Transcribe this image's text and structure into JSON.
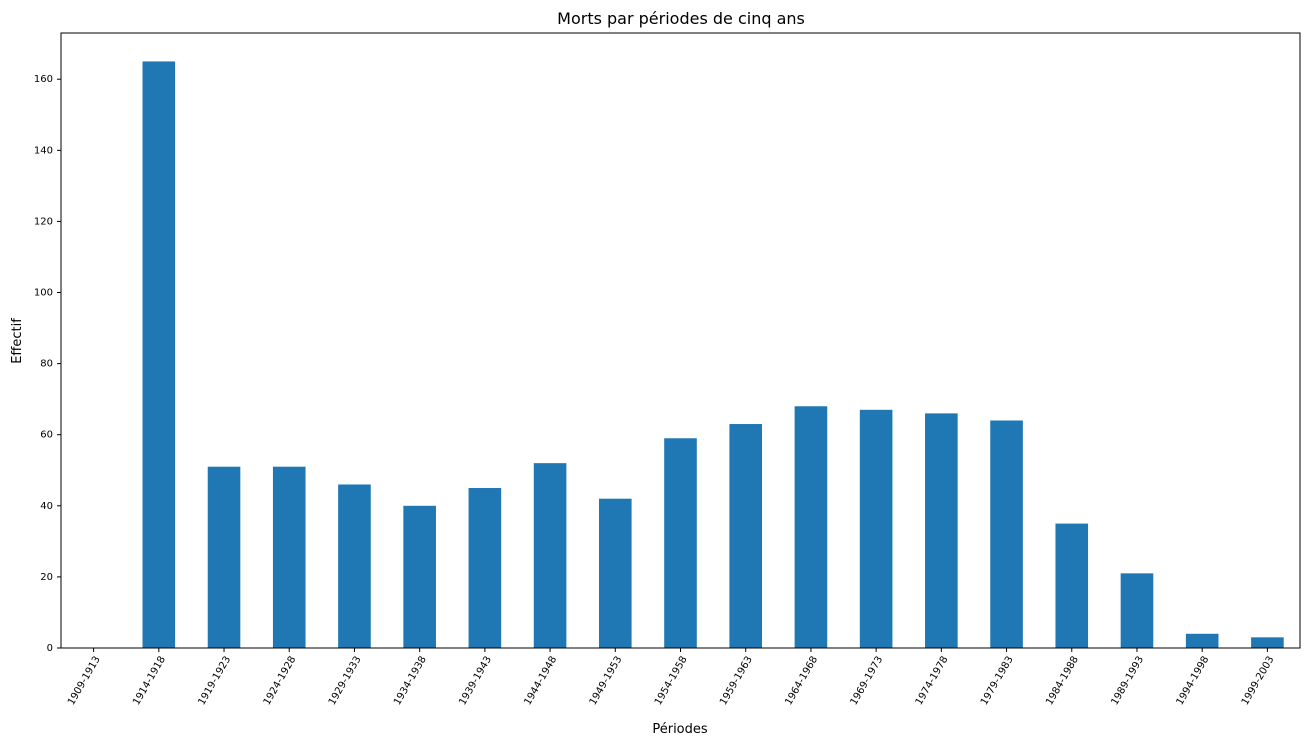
{
  "chart_data": {
    "type": "bar",
    "title": "Morts par périodes de cinq ans",
    "xlabel": "Périodes",
    "ylabel": "Effectif",
    "categories": [
      "1909-1913",
      "1914-1918",
      "1919-1923",
      "1924-1928",
      "1929-1933",
      "1934-1938",
      "1939-1943",
      "1944-1948",
      "1949-1953",
      "1954-1958",
      "1959-1963",
      "1964-1968",
      "1969-1973",
      "1974-1978",
      "1979-1983",
      "1984-1988",
      "1989-1993",
      "1994-1998",
      "1999-2003"
    ],
    "values": [
      0,
      165,
      51,
      51,
      46,
      40,
      45,
      52,
      42,
      59,
      63,
      68,
      67,
      66,
      64,
      35,
      21,
      4,
      3
    ],
    "ylim": [
      0,
      173
    ],
    "yticks": [
      0,
      20,
      40,
      60,
      80,
      100,
      120,
      140,
      160
    ],
    "grid": false,
    "color": "#1f77b4"
  }
}
